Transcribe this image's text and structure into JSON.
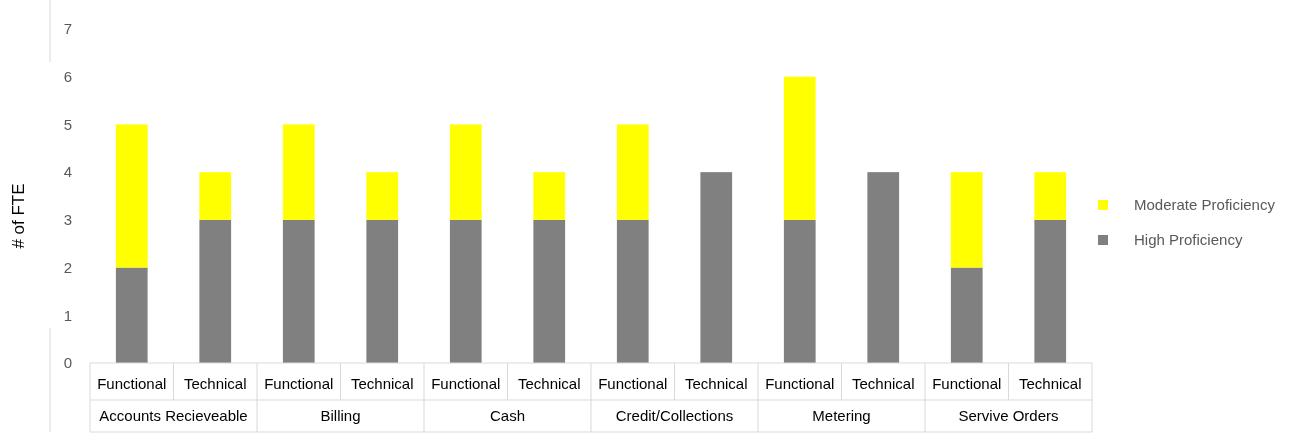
{
  "chart_data": {
    "type": "bar",
    "stacked": true,
    "ylabel": "# of FTE",
    "categories": [
      "Functional",
      "Technical",
      "Functional",
      "Technical",
      "Functional",
      "Technical",
      "Functional",
      "Technical",
      "Functional",
      "Technical",
      "Functional",
      "Technical"
    ],
    "annotations": [
      "Accounts Recieveable",
      "Billing",
      "Cash",
      "Credit/Collections",
      "Metering",
      "Servive Orders"
    ],
    "series": [
      {
        "name": "High Proficiency",
        "color": "#808080",
        "values": [
          2,
          3,
          3,
          3,
          3,
          3,
          3,
          4,
          3,
          4,
          2,
          3
        ]
      },
      {
        "name": "Moderate Proficiency",
        "color": "#ffff00",
        "values": [
          3,
          1,
          2,
          1,
          2,
          1,
          2,
          0,
          3,
          0,
          2,
          1
        ]
      }
    ],
    "ylim": [
      0,
      7
    ],
    "yticks": [
      0,
      1,
      2,
      3,
      4,
      5,
      6,
      7
    ],
    "grid": false,
    "legend": "right"
  }
}
